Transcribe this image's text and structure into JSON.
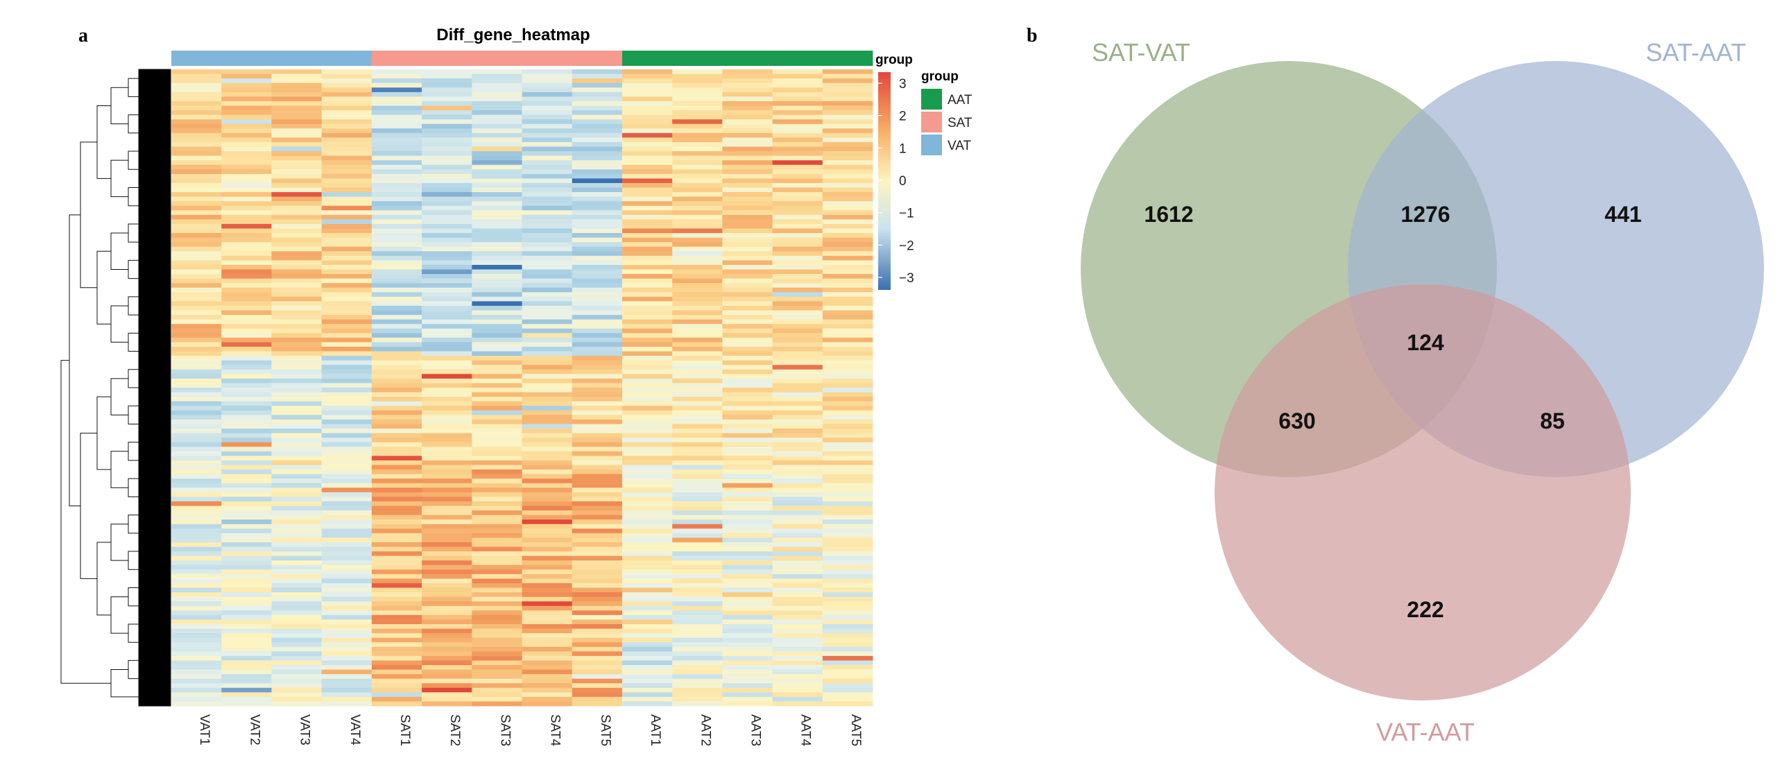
{
  "chart_data": [
    {
      "panel": "a",
      "type": "heatmap",
      "title": "Diff_gene_heatmap",
      "columns": [
        "VAT1",
        "VAT2",
        "VAT3",
        "VAT4",
        "SAT1",
        "SAT2",
        "SAT3",
        "SAT4",
        "SAT5",
        "AAT1",
        "AAT2",
        "AAT3",
        "AAT4",
        "AAT5"
      ],
      "column_groups": [
        "VAT",
        "VAT",
        "VAT",
        "VAT",
        "SAT",
        "SAT",
        "SAT",
        "SAT",
        "SAT",
        "AAT",
        "AAT",
        "AAT",
        "AAT",
        "AAT"
      ],
      "annotation": {
        "title": "group",
        "levels": [
          {
            "name": "AAT",
            "color": "#1a9c4e"
          },
          {
            "name": "SAT",
            "color": "#f59a8e"
          },
          {
            "name": "VAT",
            "color": "#7fb6da"
          }
        ]
      },
      "colorbar": {
        "ticks": [
          3,
          2,
          1,
          0,
          -1,
          -2,
          -3
        ],
        "tick_labels": [
          "3",
          "2",
          "1",
          "0",
          "−1",
          "−2",
          "−3"
        ],
        "range": [
          -3,
          3
        ],
        "colors": [
          "#3a6fb0",
          "#d9ecf2",
          "#fdf4c0",
          "#e2483a"
        ]
      },
      "row_dendrogram": true,
      "n_gene_rows": 140
    },
    {
      "panel": "b",
      "type": "venn",
      "sets": [
        {
          "name": "SAT-VAT",
          "color": "#9ab088"
        },
        {
          "name": "SAT-AAT",
          "color": "#a1b4d2"
        },
        {
          "name": "VAT-AAT",
          "color": "#d09b9c"
        }
      ],
      "regions": [
        {
          "sets": [
            "SAT-VAT"
          ],
          "count": 1612
        },
        {
          "sets": [
            "SAT-AAT"
          ],
          "count": 441
        },
        {
          "sets": [
            "VAT-AAT"
          ],
          "count": 222
        },
        {
          "sets": [
            "SAT-VAT",
            "SAT-AAT"
          ],
          "count": 1276
        },
        {
          "sets": [
            "SAT-VAT",
            "VAT-AAT"
          ],
          "count": 630
        },
        {
          "sets": [
            "SAT-AAT",
            "VAT-AAT"
          ],
          "count": 85
        },
        {
          "sets": [
            "SAT-VAT",
            "SAT-AAT",
            "VAT-AAT"
          ],
          "count": 124
        }
      ]
    }
  ]
}
